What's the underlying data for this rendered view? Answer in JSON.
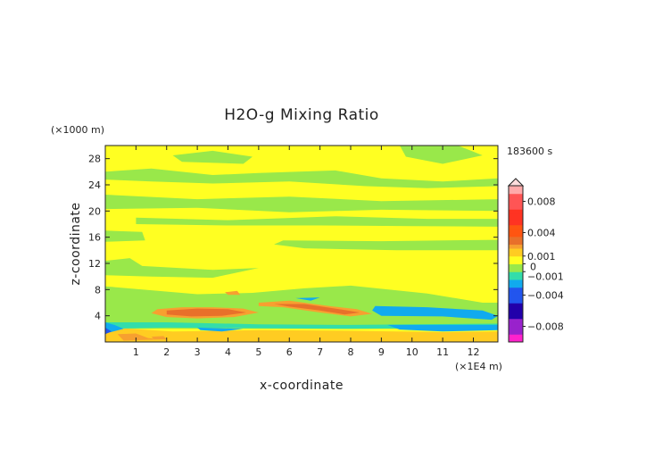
{
  "chart_data": {
    "type": "heatmap",
    "title": "H2O-g Mixing Ratio",
    "xlabel": "x-coordinate",
    "ylabel": "z-coordinate",
    "x_unit": "(×1E4 m)",
    "y_unit": "(×1000 m)",
    "time_label": "183600 s",
    "xlim": [
      0,
      12.8
    ],
    "ylim": [
      0,
      30
    ],
    "x_ticks": [
      "1",
      "2",
      "3",
      "4",
      "5",
      "6",
      "7",
      "8",
      "9",
      "10",
      "11",
      "12"
    ],
    "y_ticks": [
      "4",
      "8",
      "12",
      "16",
      "20",
      "24",
      "28"
    ],
    "colorbar": {
      "min": -0.01,
      "max": 0.01,
      "labels": [
        {
          "text": "0.008",
          "value": 0.008
        },
        {
          "text": "0.004",
          "value": 0.004
        },
        {
          "text": "0.001",
          "value": 0.001
        },
        {
          "text": "0",
          "value": 0
        },
        {
          "text": "−0.001",
          "value": -0.001
        },
        {
          "text": "−0.004",
          "value": -0.004
        },
        {
          "text": "−0.008",
          "value": -0.008
        }
      ]
    },
    "background_value": 0.0005,
    "regions": [
      {
        "value": -0.0005,
        "points": [
          [
            2.2,
            28.5
          ],
          [
            3.5,
            29.2
          ],
          [
            4.8,
            28.3
          ],
          [
            4.5,
            27.2
          ],
          [
            2.5,
            27.5
          ]
        ]
      },
      {
        "value": -0.0005,
        "points": [
          [
            9.6,
            30
          ],
          [
            11.5,
            30
          ],
          [
            12.3,
            28.5
          ],
          [
            11.0,
            27.2
          ],
          [
            9.8,
            28.3
          ]
        ]
      },
      {
        "value": -0.0005,
        "points": [
          [
            0,
            26.0
          ],
          [
            1.5,
            26.5
          ],
          [
            3.5,
            25.5
          ],
          [
            5.0,
            25.8
          ],
          [
            7.5,
            26.2
          ],
          [
            9.0,
            25.0
          ],
          [
            11.0,
            24.5
          ],
          [
            12.8,
            25.0
          ],
          [
            12.8,
            23.8
          ],
          [
            10.5,
            23.5
          ],
          [
            8.5,
            23.8
          ],
          [
            6.0,
            24.5
          ],
          [
            3.5,
            24.2
          ],
          [
            1.5,
            24.5
          ],
          [
            0,
            24.8
          ]
        ]
      },
      {
        "value": -0.0005,
        "points": [
          [
            0,
            22.5
          ],
          [
            3.0,
            21.8
          ],
          [
            6.0,
            22.2
          ],
          [
            9.0,
            21.5
          ],
          [
            12.8,
            21.8
          ],
          [
            12.8,
            20.0
          ],
          [
            9.0,
            20.2
          ],
          [
            6.0,
            19.8
          ],
          [
            3.0,
            20.5
          ],
          [
            0,
            20.3
          ]
        ]
      },
      {
        "value": -0.0005,
        "points": [
          [
            1.0,
            19.0
          ],
          [
            4.0,
            18.6
          ],
          [
            7.5,
            19.2
          ],
          [
            10.5,
            18.8
          ],
          [
            12.8,
            18.8
          ],
          [
            12.8,
            17.6
          ],
          [
            10.0,
            17.7
          ],
          [
            7.0,
            17.8
          ],
          [
            4.0,
            17.8
          ],
          [
            1.0,
            18.0
          ]
        ]
      },
      {
        "value": -0.0005,
        "points": [
          [
            0,
            17.0
          ],
          [
            1.2,
            16.8
          ],
          [
            1.3,
            15.5
          ],
          [
            0,
            15.3
          ]
        ]
      },
      {
        "value": -0.0005,
        "points": [
          [
            5.8,
            15.5
          ],
          [
            9.0,
            15.4
          ],
          [
            12.8,
            15.6
          ],
          [
            12.8,
            14.0
          ],
          [
            9.5,
            14.0
          ],
          [
            6.5,
            14.3
          ],
          [
            5.5,
            14.9
          ]
        ]
      },
      {
        "value": -0.0005,
        "points": [
          [
            0,
            12.4
          ],
          [
            0.8,
            12.8
          ],
          [
            1.2,
            11.6
          ],
          [
            3.5,
            11.0
          ],
          [
            5.0,
            11.3
          ],
          [
            3.5,
            9.8
          ],
          [
            1.5,
            10.0
          ],
          [
            0,
            10.2
          ]
        ]
      },
      {
        "value": -0.0005,
        "points": [
          [
            0,
            8.5
          ],
          [
            3.0,
            7.3
          ],
          [
            4.8,
            7.5
          ],
          [
            6.5,
            8.2
          ],
          [
            8.0,
            8.6
          ],
          [
            10.5,
            7.4
          ],
          [
            12.3,
            6.0
          ],
          [
            12.8,
            6.0
          ],
          [
            12.8,
            2.0
          ],
          [
            0,
            2.0
          ]
        ]
      },
      {
        "value": 0.0015,
        "points": [
          [
            0.2,
            2.2
          ],
          [
            2.2,
            1.6
          ],
          [
            5.0,
            1.8
          ],
          [
            8.0,
            1.7
          ],
          [
            11.0,
            1.5
          ],
          [
            12.8,
            1.6
          ],
          [
            12.8,
            0
          ],
          [
            0,
            0
          ],
          [
            0,
            1.4
          ]
        ]
      },
      {
        "value": -0.0015,
        "points": [
          [
            0,
            3.0
          ],
          [
            2.0,
            3.0
          ],
          [
            5.0,
            2.7
          ],
          [
            8.0,
            2.6
          ],
          [
            12.8,
            2.8
          ],
          [
            12.8,
            2.2
          ],
          [
            8.0,
            2.0
          ],
          [
            5.0,
            2.1
          ],
          [
            2.0,
            2.2
          ],
          [
            0,
            2.0
          ]
        ]
      },
      {
        "value": -0.0025,
        "points": [
          [
            8.8,
            5.5
          ],
          [
            10.5,
            5.3
          ],
          [
            12.3,
            4.8
          ],
          [
            12.8,
            4.0
          ],
          [
            12.6,
            3.4
          ],
          [
            11.0,
            3.9
          ],
          [
            9.0,
            4.0
          ],
          [
            8.7,
            4.8
          ]
        ]
      },
      {
        "value": -0.0025,
        "points": [
          [
            0,
            3.0
          ],
          [
            0.3,
            2.6
          ],
          [
            0.6,
            2.0
          ],
          [
            0,
            1.3
          ]
        ]
      },
      {
        "value": -0.0025,
        "points": [
          [
            9.2,
            2.6
          ],
          [
            12.8,
            2.6
          ],
          [
            12.8,
            1.8
          ],
          [
            11.0,
            1.6
          ],
          [
            9.6,
            1.9
          ]
        ]
      },
      {
        "value": -0.004,
        "points": [
          [
            0,
            2.2
          ],
          [
            0.2,
            1.6
          ],
          [
            0,
            1.2
          ]
        ]
      },
      {
        "value": -0.0025,
        "points": [
          [
            3.0,
            2.2
          ],
          [
            4.5,
            2.0
          ],
          [
            3.8,
            1.6
          ],
          [
            3.1,
            1.8
          ]
        ]
      },
      {
        "value": -0.0025,
        "points": [
          [
            6.2,
            6.7
          ],
          [
            7.0,
            6.8
          ],
          [
            6.7,
            6.3
          ]
        ]
      },
      {
        "value": 0.002,
        "points": [
          [
            1.7,
            5.0
          ],
          [
            2.5,
            5.3
          ],
          [
            3.5,
            5.3
          ],
          [
            4.5,
            5.1
          ],
          [
            5.0,
            4.5
          ],
          [
            4.2,
            3.8
          ],
          [
            3.0,
            3.6
          ],
          [
            2.0,
            3.8
          ],
          [
            1.5,
            4.4
          ]
        ]
      },
      {
        "value": 0.003,
        "points": [
          [
            2.0,
            4.8
          ],
          [
            3.0,
            5.1
          ],
          [
            4.0,
            5.0
          ],
          [
            4.6,
            4.5
          ],
          [
            3.8,
            4.0
          ],
          [
            2.8,
            3.9
          ],
          [
            2.0,
            4.2
          ]
        ]
      },
      {
        "value": 0.002,
        "points": [
          [
            5.0,
            6.0
          ],
          [
            6.0,
            6.3
          ],
          [
            7.3,
            5.5
          ],
          [
            8.2,
            5.0
          ],
          [
            8.7,
            4.3
          ],
          [
            8.0,
            3.9
          ],
          [
            7.0,
            4.5
          ],
          [
            5.8,
            5.3
          ],
          [
            5.0,
            5.5
          ]
        ]
      },
      {
        "value": 0.003,
        "points": [
          [
            5.5,
            5.8
          ],
          [
            6.5,
            5.8
          ],
          [
            7.5,
            5.1
          ],
          [
            8.3,
            4.5
          ],
          [
            7.8,
            4.2
          ],
          [
            7.0,
            4.8
          ],
          [
            6.0,
            5.4
          ]
        ]
      },
      {
        "value": 0.002,
        "points": [
          [
            3.9,
            7.6
          ],
          [
            4.3,
            7.8
          ],
          [
            4.4,
            7.2
          ],
          [
            4.0,
            7.2
          ]
        ]
      },
      {
        "value": 0.002,
        "points": [
          [
            0.4,
            1.2
          ],
          [
            1.0,
            1.3
          ],
          [
            1.4,
            0.6
          ],
          [
            1.8,
            0.4
          ],
          [
            0.6,
            0.2
          ]
        ]
      },
      {
        "value": 0.002,
        "points": [
          [
            1.5,
            0.8
          ],
          [
            1.9,
            0.9
          ],
          [
            2.0,
            0.4
          ],
          [
            1.6,
            0.4
          ]
        ]
      }
    ]
  }
}
